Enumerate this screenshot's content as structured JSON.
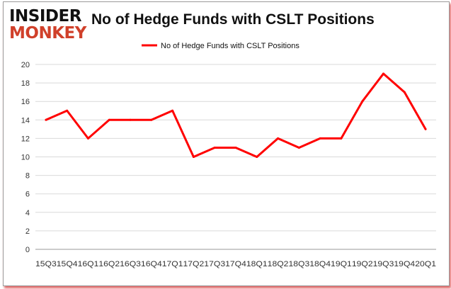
{
  "logo": {
    "line1": "INSIDER",
    "line2": "MONKEY"
  },
  "chart_data": {
    "type": "line",
    "title": "No of Hedge Funds with CSLT Positions",
    "categories": [
      "15Q3",
      "15Q4",
      "16Q1",
      "16Q2",
      "16Q3",
      "16Q4",
      "17Q1",
      "17Q2",
      "17Q3",
      "17Q4",
      "18Q1",
      "18Q2",
      "18Q3",
      "18Q4",
      "19Q1",
      "19Q2",
      "19Q3",
      "19Q4",
      "20Q1"
    ],
    "series": [
      {
        "name": "No of Hedge Funds with CSLT Positions",
        "color": "#ff0000",
        "values": [
          14,
          15,
          12,
          14,
          14,
          14,
          15,
          10,
          11,
          11,
          10,
          12,
          11,
          12,
          12,
          16,
          19,
          17,
          13
        ]
      }
    ],
    "ylim": [
      0,
      20
    ],
    "yticks": [
      0,
      2,
      4,
      6,
      8,
      10,
      12,
      14,
      16,
      18,
      20
    ],
    "grid": true,
    "legend": "top-center"
  }
}
